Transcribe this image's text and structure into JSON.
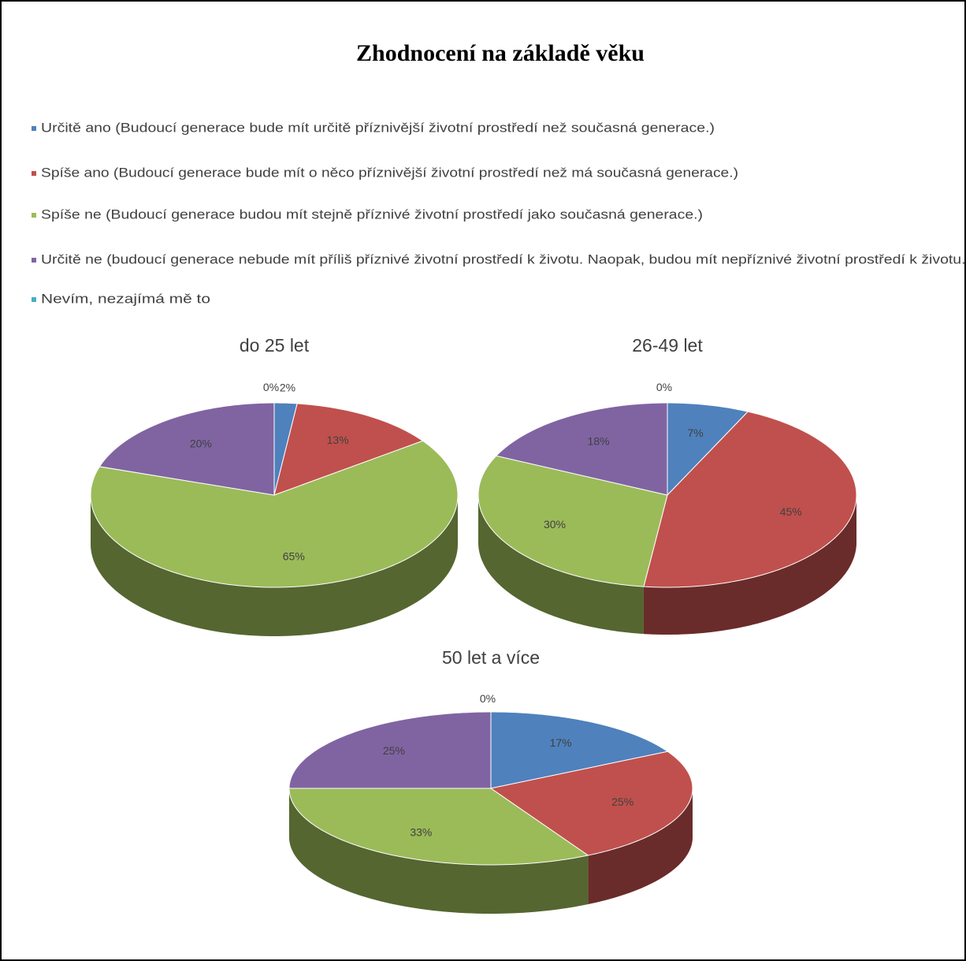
{
  "title": "Zhodnocení na základě věku",
  "legend": {
    "categories": [
      "Určitě ano (Budoucí generace bude mít určitě příznivější životní prostředí než současná generace.)",
      "Spíše ano (Budoucí generace bude mít o něco příznivější životní prostředí než má současná generace.)",
      "Spíše ne (Budoucí generace budou mít stejně příznivé životní prostředí jako současná generace.)",
      "Určitě ne (budoucí generace nebude mít příliš příznivé životní prostředí k životu. Naopak, budou mít nepříznivé životní prostředí k životu.)",
      "Nevím, nezajímá mě to"
    ],
    "colors": [
      "#4f81bd",
      "#c0504d",
      "#9bbb59",
      "#8064a2",
      "#4bacc6"
    ]
  },
  "chart_data": [
    {
      "type": "pie",
      "title": "do 25 let",
      "values": [
        2,
        13,
        65,
        20,
        0
      ],
      "value_labels": [
        "2%",
        "13%",
        "65%",
        "20%",
        "0%"
      ]
    },
    {
      "type": "pie",
      "title": "26-49 let",
      "values": [
        7,
        45,
        30,
        18,
        0
      ],
      "value_labels": [
        "7%",
        "45%",
        "30%",
        "18%",
        "0%"
      ]
    },
    {
      "type": "pie",
      "title": "50 let a více",
      "values": [
        17,
        25,
        33,
        25,
        0
      ],
      "value_labels": [
        "17%",
        "25%",
        "33%",
        "25%",
        "0%"
      ]
    }
  ]
}
